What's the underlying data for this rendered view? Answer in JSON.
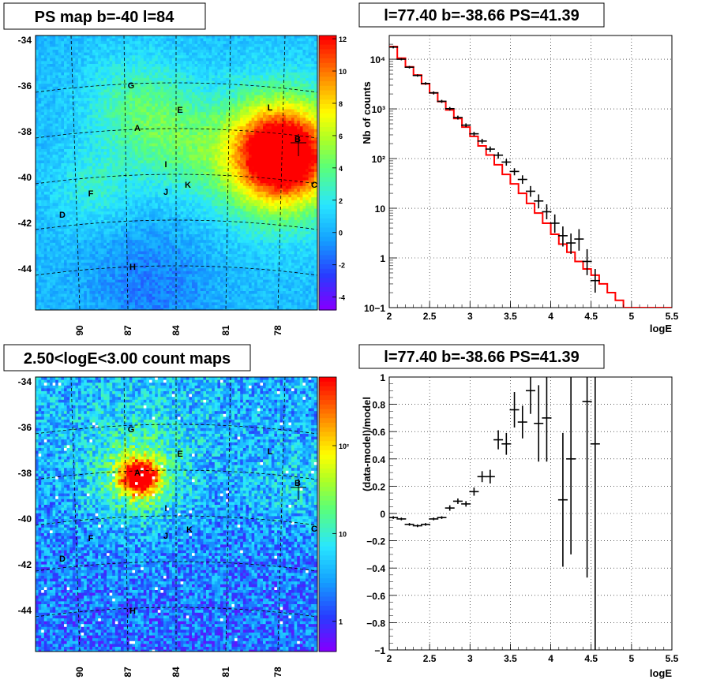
{
  "chart_data": [
    {
      "type": "heatmap",
      "panel": "top-left",
      "title": "PS map b=-40 l=84",
      "xlabel": "",
      "ylabel": "",
      "x_ticks": [
        "90",
        "87",
        "84",
        "81",
        "78"
      ],
      "y_ticks": [
        "-34",
        "-36",
        "-38",
        "-40",
        "-42",
        "-44"
      ],
      "colorbar": {
        "scale": "linear",
        "range": [
          -5,
          12
        ],
        "ticks": [
          "12",
          "10",
          "8",
          "6",
          "4",
          "2",
          "0",
          "-2",
          "-4"
        ]
      },
      "sources": [
        "G",
        "E",
        "A",
        "L",
        "B",
        "I",
        "J",
        "K",
        "C",
        "F",
        "D",
        "H"
      ],
      "grid": "galactic",
      "colors": {
        "peak": "#ff0000",
        "mid": "#99ff33",
        "base": "#33ddff",
        "low": "#4444ff"
      }
    },
    {
      "type": "line",
      "panel": "top-right",
      "title": "l=77.40 b=-38.66 PS=41.39",
      "xlabel": "logE",
      "ylabel": "Nb of counts",
      "xlim": [
        2,
        5.5
      ],
      "ylim": [
        0.1,
        30000
      ],
      "yscale": "log",
      "x_ticks": [
        "2",
        "2.5",
        "3",
        "3.5",
        "4",
        "4.5",
        "5",
        "5.5"
      ],
      "y_ticks": [
        "10−1",
        "1",
        "10",
        "10²",
        "10³",
        "10⁴"
      ],
      "grid": true,
      "series": [
        {
          "kind": "step",
          "color": "#ff0000",
          "edges": [
            2,
            2.1,
            2.2,
            2.3,
            2.4,
            2.5,
            2.6,
            2.7,
            2.8,
            2.9,
            3,
            3.1,
            3.2,
            3.3,
            3.4,
            3.5,
            3.6,
            3.7,
            3.8,
            3.9,
            4,
            4.1,
            4.2,
            4.3,
            4.4,
            4.5,
            4.6,
            4.7,
            4.8,
            4.9,
            5,
            5.5
          ],
          "values": [
            18000,
            10500,
            7000,
            4800,
            3200,
            2100,
            1400,
            950,
            640,
            430,
            280,
            180,
            118,
            75,
            48,
            31,
            20,
            12.5,
            8,
            5,
            3,
            1.9,
            1.3,
            0.85,
            0.6,
            0.45,
            0.3,
            0.2,
            0.14,
            0.1,
            0.1
          ]
        },
        {
          "kind": "errorbar",
          "color": "#000000",
          "x": [
            2.05,
            2.15,
            2.25,
            2.35,
            2.45,
            2.55,
            2.65,
            2.75,
            2.85,
            2.95,
            3.05,
            3.15,
            3.25,
            3.35,
            3.45,
            3.55,
            3.65,
            3.75,
            3.85,
            3.95,
            4.05,
            4.15,
            4.25,
            4.35,
            4.45,
            4.55
          ],
          "y": [
            17500,
            10000,
            6900,
            4700,
            3250,
            2100,
            1420,
            1010,
            670,
            470,
            315,
            225,
            155,
            117,
            85,
            55,
            38,
            22,
            14,
            8.5,
            5,
            2.8,
            2,
            2.4,
            0.85,
            0.35
          ],
          "ylow": [
            16500,
            9500,
            6500,
            4450,
            3050,
            1950,
            1320,
            930,
            610,
            430,
            285,
            200,
            135,
            100,
            72,
            46,
            31,
            17,
            10,
            6,
            3.2,
            1.7,
            1.2,
            1.4,
            0.45,
            0.2
          ],
          "yhigh": [
            18500,
            10500,
            7300,
            4950,
            3450,
            2250,
            1520,
            1090,
            730,
            510,
            345,
            250,
            175,
            134,
            98,
            64,
            46,
            28,
            19,
            12,
            7.5,
            4.3,
            3.1,
            3.8,
            1.5,
            0.6
          ]
        }
      ]
    },
    {
      "type": "heatmap",
      "panel": "bottom-left",
      "title": "2.50<logE<3.00 count maps",
      "xlabel": "",
      "ylabel": "",
      "x_ticks": [
        "90",
        "87",
        "84",
        "81",
        "78"
      ],
      "y_ticks": [
        "-34",
        "-36",
        "-38",
        "-40",
        "-42",
        "-44"
      ],
      "colorbar": {
        "scale": "log",
        "range": [
          0.5,
          400
        ],
        "ticks": [
          "10²",
          "10",
          "1"
        ]
      },
      "sources": [
        "G",
        "E",
        "L",
        "A",
        "B",
        "I",
        "K",
        "J",
        "C",
        "F",
        "D",
        "H"
      ],
      "grid": "galactic"
    },
    {
      "type": "scatter",
      "panel": "bottom-right",
      "title": "l=77.40 b=-38.66 PS=41.39",
      "xlabel": "logE",
      "ylabel": "(data-model)/model",
      "xlim": [
        2,
        5.5
      ],
      "ylim": [
        -1,
        1
      ],
      "x_ticks": [
        "2",
        "2.5",
        "3",
        "3.5",
        "4",
        "4.5",
        "5",
        "5.5"
      ],
      "y_ticks": [
        "1",
        "0.8",
        "0.6",
        "0.4",
        "0.2",
        "0",
        "−0.2",
        "−0.4",
        "−0.6",
        "−0.8",
        "−1"
      ],
      "grid": true,
      "series": [
        {
          "kind": "errorbar",
          "color": "#000000",
          "x": [
            2.05,
            2.15,
            2.25,
            2.35,
            2.45,
            2.55,
            2.65,
            2.75,
            2.85,
            2.95,
            3.05,
            3.15,
            3.25,
            3.35,
            3.45,
            3.55,
            3.65,
            3.75,
            3.85,
            3.95,
            4.15,
            4.25,
            4.45,
            4.55
          ],
          "y": [
            -0.03,
            -0.04,
            -0.08,
            -0.09,
            -0.08,
            -0.04,
            -0.03,
            0.04,
            0.09,
            0.07,
            0.16,
            0.27,
            0.27,
            0.54,
            0.51,
            0.76,
            0.67,
            0.9,
            0.66,
            0.7,
            0.1,
            0.4,
            0.82,
            0.51
          ],
          "ylow": [
            -0.04,
            -0.05,
            -0.09,
            -0.1,
            -0.09,
            -0.05,
            -0.04,
            0.02,
            0.07,
            0.05,
            0.13,
            0.23,
            0.22,
            0.47,
            0.43,
            0.63,
            0.55,
            0.73,
            0.38,
            0.38,
            -0.39,
            -0.3,
            -0.47,
            -1
          ],
          "yhigh": [
            -0.02,
            -0.03,
            -0.07,
            -0.08,
            -0.07,
            -0.03,
            -0.02,
            0.06,
            0.11,
            0.09,
            0.19,
            0.31,
            0.32,
            0.61,
            0.59,
            0.89,
            0.79,
            1,
            0.94,
            1,
            0.59,
            1,
            1,
            1
          ]
        }
      ]
    }
  ]
}
